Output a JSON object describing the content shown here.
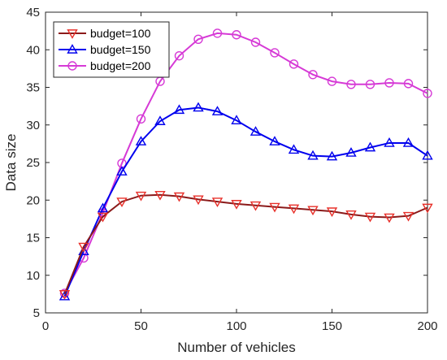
{
  "chart_data": {
    "type": "line",
    "title": "",
    "xlabel": "Number of vehicles",
    "ylabel": "Data size",
    "xlim": [
      0,
      200
    ],
    "ylim": [
      5,
      45
    ],
    "xticks": [
      0,
      50,
      100,
      150,
      200
    ],
    "yticks": [
      5,
      10,
      15,
      20,
      25,
      30,
      35,
      40,
      45
    ],
    "grid": false,
    "legend_position": "top-left",
    "x": [
      10,
      20,
      30,
      40,
      50,
      60,
      70,
      80,
      90,
      100,
      110,
      120,
      130,
      140,
      150,
      160,
      170,
      180,
      190,
      200
    ],
    "series": [
      {
        "name": "budget=100",
        "color": "#8b1a1a",
        "marker_color": "#e8302a",
        "marker": "triangle-down",
        "values": [
          7.5,
          13.8,
          17.8,
          19.8,
          20.6,
          20.7,
          20.5,
          20.1,
          19.8,
          19.5,
          19.3,
          19.1,
          18.9,
          18.7,
          18.5,
          18.1,
          17.8,
          17.7,
          17.9,
          19.0
        ]
      },
      {
        "name": "budget=150",
        "color": "#0000ee",
        "marker_color": "#0000ee",
        "marker": "triangle-up",
        "values": [
          7.2,
          13.2,
          18.9,
          23.8,
          27.8,
          30.5,
          32.0,
          32.3,
          31.8,
          30.6,
          29.1,
          27.8,
          26.7,
          25.9,
          25.8,
          26.3,
          27.0,
          27.6,
          27.6,
          25.9
        ]
      },
      {
        "name": "budget=200",
        "color": "#d63ad6",
        "marker_color": "#d63ad6",
        "marker": "circle",
        "values": [
          7.6,
          12.3,
          18.3,
          24.9,
          30.8,
          35.8,
          39.2,
          41.4,
          42.2,
          42.0,
          41.0,
          39.6,
          38.1,
          36.7,
          35.8,
          35.4,
          35.4,
          35.6,
          35.5,
          34.2
        ]
      }
    ]
  }
}
